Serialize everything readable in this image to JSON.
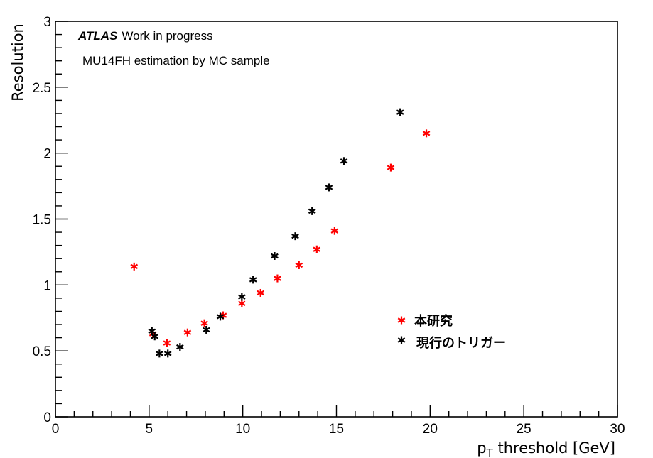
{
  "chart_data": {
    "type": "scatter",
    "xlabel_main": "p",
    "xlabel_sub": "T",
    "xlabel_rest": " threshold [GeV]",
    "ylabel": "Resolution",
    "xlim": [
      0,
      30
    ],
    "ylim": [
      0,
      3
    ],
    "x_ticks": [
      "0",
      "5",
      "10",
      "15",
      "20",
      "25",
      "30"
    ],
    "y_ticks": [
      "0",
      "0.5",
      "1",
      "1.5",
      "2",
      "2.5",
      "3"
    ],
    "annotations": {
      "atlas": "ATLAS",
      "status": "Work in progress",
      "line2": "MU14FH estimation by MC sample"
    },
    "legend_position": "lower-right",
    "series": [
      {
        "name": "本研究",
        "color": "#ff0000",
        "marker": "star",
        "x": [
          4.2,
          5.2,
          5.95,
          7.05,
          7.95,
          8.95,
          9.95,
          10.95,
          11.85,
          13.0,
          13.95,
          14.9,
          17.9,
          19.8
        ],
        "y": [
          1.14,
          0.63,
          0.56,
          0.64,
          0.71,
          0.77,
          0.86,
          0.94,
          1.05,
          1.15,
          1.27,
          1.41,
          1.89,
          2.15
        ]
      },
      {
        "name": "現行のトリガー",
        "color": "#000000",
        "marker": "star",
        "x": [
          5.15,
          5.3,
          5.55,
          6.0,
          6.65,
          8.05,
          8.8,
          9.95,
          10.55,
          11.7,
          12.8,
          13.7,
          14.6,
          15.4,
          18.4
        ],
        "y": [
          0.65,
          0.61,
          0.48,
          0.48,
          0.53,
          0.66,
          0.76,
          0.91,
          1.04,
          1.22,
          1.37,
          1.56,
          1.74,
          1.94,
          2.31
        ]
      }
    ]
  }
}
